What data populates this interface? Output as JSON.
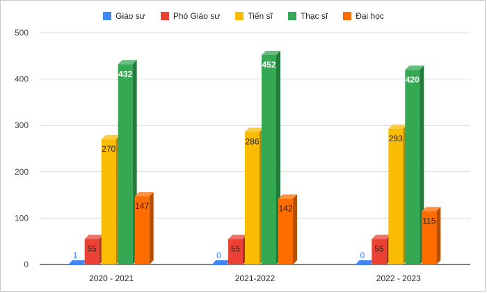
{
  "chart_data": {
    "type": "bar",
    "style": "3d-column",
    "categories": [
      "2020 - 2021",
      "2021-2022",
      "2022 - 2023"
    ],
    "series": [
      {
        "name": "Giáo sư",
        "color": "#4285f4",
        "values": [
          1,
          0,
          0
        ]
      },
      {
        "name": "Phó Giáo sư",
        "color": "#ea4335",
        "values": [
          55,
          55,
          55
        ]
      },
      {
        "name": "Tiến sĩ",
        "color": "#fbbc04",
        "values": [
          270,
          286,
          293
        ]
      },
      {
        "name": "Thạc sĩ",
        "color": "#34a853",
        "values": [
          432,
          452,
          420
        ]
      },
      {
        "name": "Đại học",
        "color": "#ff6d01",
        "values": [
          147,
          142,
          115
        ]
      }
    ],
    "ylim": [
      0,
      500
    ],
    "yticks": [
      0,
      100,
      200,
      300,
      400,
      500
    ],
    "grid": true,
    "legend_position": "top",
    "title": "",
    "xlabel": "",
    "ylabel": ""
  }
}
